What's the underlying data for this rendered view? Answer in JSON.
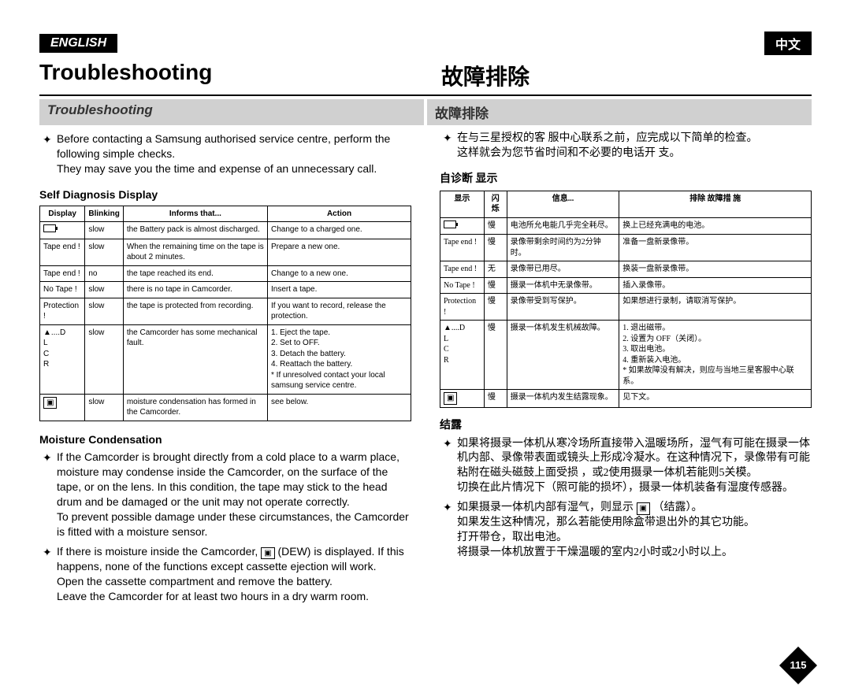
{
  "lang_left": "ENGLISH",
  "lang_right": "中文",
  "title_left": "Troubleshooting",
  "title_right": "故障排除",
  "subtitle_left": "Troubleshooting",
  "subtitle_right": "故障排除",
  "en_intro1": "Before contacting a Samsung authorised service centre, perform the following simple checks.",
  "en_intro2": "They may save you the time and expense of an unnecessary call.",
  "cn_intro1": "在与三星授权的客 服中心联系之前，应完成以下简单的检查。",
  "cn_intro2": "这样就会为您节省时间和不必要的电话开 支。",
  "en_diag_head": "Self Diagnosis Display",
  "cn_diag_head": "自诊断 显示",
  "en_cols": [
    "Display",
    "Blinking",
    "Informs that...",
    "Action"
  ],
  "cn_cols": [
    "显示",
    "闪烁",
    "信息...",
    "排除 故障措 施"
  ],
  "en_rows": [
    {
      "d": "__BATT__",
      "b": "slow",
      "i": "the Battery pack is almost discharged.",
      "a": "Change to a charged one."
    },
    {
      "d": "Tape end !",
      "b": "slow",
      "i": "When the remaining time on the tape is about 2 minutes.",
      "a": "Prepare a new one."
    },
    {
      "d": "Tape end !",
      "b": "no",
      "i": "the tape reached its end.",
      "a": "Change to a new one."
    },
    {
      "d": "No Tape !",
      "b": "slow",
      "i": "there is no tape in Camcorder.",
      "a": "Insert a tape."
    },
    {
      "d": "Protection !",
      "b": "slow",
      "i": "the tape is protected from recording.",
      "a": "If you want to record, release the protection."
    },
    {
      "d": "▲....D\nL\nC\nR",
      "b": "slow",
      "i": "the Camcorder has some mechanical fault.",
      "a": "1. Eject the tape.\n2. Set to OFF.\n3. Detach the battery.\n4. Reattach the battery.\n* If unresolved contact your local samsung service centre."
    },
    {
      "d": "__DEW__",
      "b": "slow",
      "i": "moisture condensation has formed in the Camcorder.",
      "a": "see below."
    }
  ],
  "cn_rows": [
    {
      "d": "__BATT__",
      "b": "慢",
      "i": "电池所允电能几乎完全耗尽。",
      "a": "换上已经充满电的电池。"
    },
    {
      "d": "Tape end !",
      "b": "慢",
      "i": "录像带剩余时间约为2分钟时。",
      "a": "准备一盘新录像带。"
    },
    {
      "d": "Tape end !",
      "b": "无",
      "i": "录像带已用尽。",
      "a": "换装一盘新录像带。"
    },
    {
      "d": "No Tape !",
      "b": "慢",
      "i": "摄录一体机中无录像带。",
      "a": "插入录像带。"
    },
    {
      "d": "Protection !",
      "b": "慢",
      "i": "录像带受到写保护。",
      "a": "如果想进行录制，请取消写保护。"
    },
    {
      "d": "▲....D\nL\nC\nR",
      "b": "慢",
      "i": "摄录一体机发生机械故障。",
      "a": "1. 退出磁带。\n2. 设置为 OFF（关闭）。\n3. 取出电池。\n4. 重新装入电池。\n* 如果故障没有解决，则应与当地三星客服中心联系。"
    },
    {
      "d": "__DEW__",
      "b": "慢",
      "i": "摄录一体机内发生结露现象。",
      "a": "见下文。"
    }
  ],
  "en_moist_head": "Moisture Condensation",
  "cn_moist_head": "结露",
  "en_moist1": "If the Camcorder is brought directly from a cold place to a warm place, moisture may condense inside the Camcorder, on the surface of the tape, or on the lens. In this condition, the tape may stick to the head drum and be damaged or the unit may not operate correctly.",
  "en_moist1b": "To prevent possible damage under these circumstances, the Camcorder is fitted with a moisture sensor.",
  "en_moist2a": "If there is moisture inside the Camcorder, ",
  "en_moist2b": " (DEW) is displayed. If this happens, none of the functions except cassette ejection will work.",
  "en_moist2c": "Open the cassette compartment and remove the battery.",
  "en_moist2d": "Leave the Camcorder for at least two hours in a dry warm room.",
  "cn_moist1": "如果将摄录一体机从寒冷场所直接带入温暖场所，湿气有可能在摄录一体机内部、录像带表面或镜头上形成冷凝水。在这种情况下，录像带有可能粘附在磁头磁鼓上面受损 ，或2使用摄录一体机若能则5关模。",
  "cn_moist1b": "切换在此片情况下（照可能的损坏），摄录一体机装备有湿度传感器。",
  "cn_moist2a": "如果摄录一体机内部有湿气，则显示 ",
  "cn_moist2b": "（结露）。",
  "cn_moist2c": "如果发生这种情况，那么若能使用除盒带退出外的其它功能。",
  "cn_moist2d": "打开带仓，取出电池。",
  "cn_moist2e": "将摄录一体机放置于干燥温暖的室内2小时或2小时以上。",
  "pagenum": "115"
}
